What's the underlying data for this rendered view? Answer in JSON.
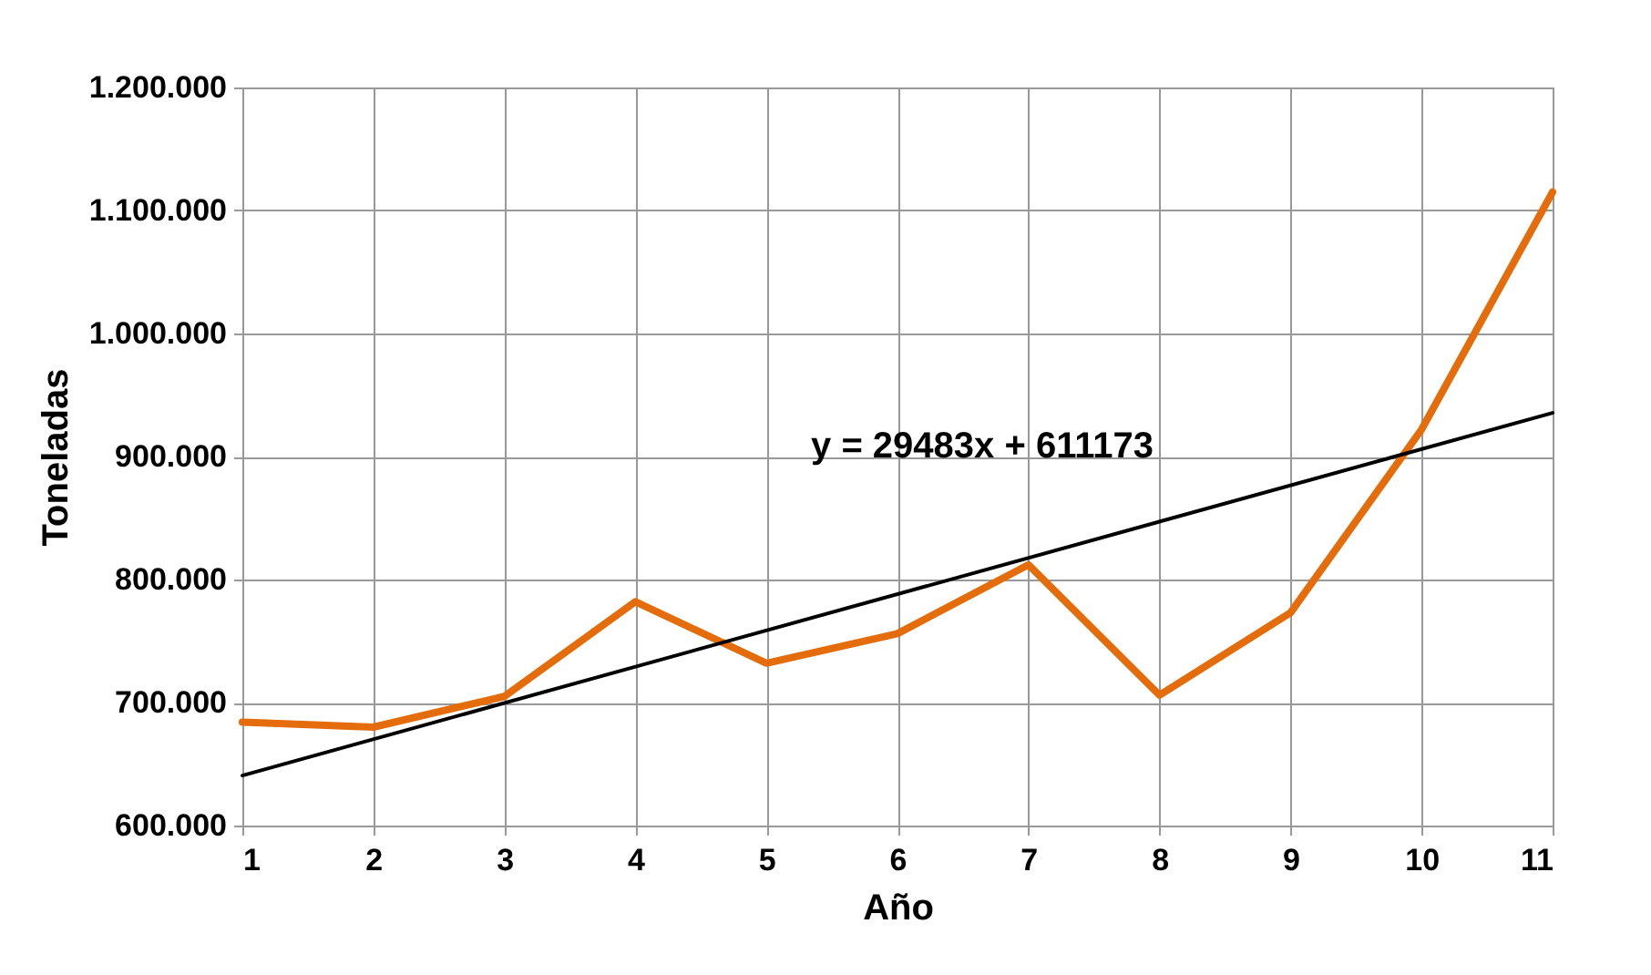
{
  "chart_data": {
    "type": "line",
    "xlabel": "Año",
    "ylabel": "Toneladas",
    "x": [
      1,
      2,
      3,
      4,
      5,
      6,
      7,
      8,
      9,
      10,
      11
    ],
    "series": [
      {
        "color": "#e46c0a",
        "values": [
          684000,
          680000,
          705000,
          782000,
          732000,
          756000,
          812000,
          706000,
          773000,
          922000,
          1115000
        ]
      },
      {
        "type": "line",
        "color": "#000000",
        "x": [
          1,
          11
        ],
        "values": [
          640700,
          935500
        ]
      }
    ],
    "xlim": [
      1,
      11
    ],
    "xticks": [
      1,
      2,
      3,
      4,
      5,
      6,
      7,
      8,
      9,
      10,
      11
    ],
    "ylim": [
      600000,
      1200000
    ],
    "yticks": [
      {
        "value": 600000,
        "label": "600.000"
      },
      {
        "value": 700000,
        "label": "700.000"
      },
      {
        "value": 800000,
        "label": "800.000"
      },
      {
        "value": 900000,
        "label": "900.000"
      },
      {
        "value": 1000000,
        "label": "1.000.000"
      },
      {
        "value": 1100000,
        "label": "1.100.000"
      },
      {
        "value": 1200000,
        "label": "1.200.000"
      }
    ],
    "grid": true,
    "marker": "none",
    "line_style": "solid",
    "annotations": [
      "y = 29483x + 611173"
    ]
  }
}
